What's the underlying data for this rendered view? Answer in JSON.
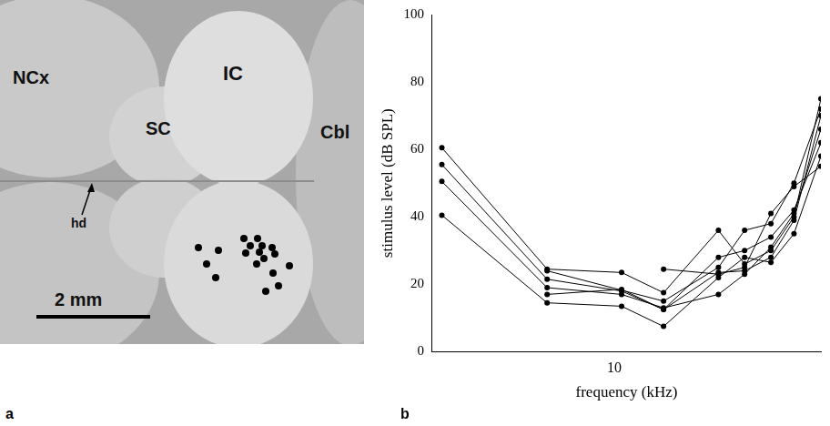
{
  "panel_a": {
    "letter": "a",
    "labels": {
      "ncx": "NCx",
      "sc": "SC",
      "ic": "IC",
      "cbl": "Cbl",
      "hd": "hd"
    },
    "scale_bar": "2 mm"
  },
  "panel_b": {
    "letter": "b"
  },
  "chart_data": {
    "type": "scatter",
    "log": "x",
    "grid": false,
    "x_label": "frequency (kHz)",
    "y_label": "stimulus level (dB SPL)",
    "xlim": [
      3.8,
      30
    ],
    "xticks": [
      10
    ],
    "ylim": [
      0,
      100
    ],
    "yticks": [
      0,
      20,
      40,
      60,
      80,
      100
    ],
    "marker": "circle",
    "line_style": "solid",
    "color": "#000000",
    "series": [
      {
        "x": [
          4,
          7,
          10.4,
          13,
          17.4,
          20,
          23,
          26,
          30
        ],
        "values": [
          60.5,
          24.5,
          23.5,
          17.5,
          36,
          26,
          30,
          40,
          75
        ]
      },
      {
        "x": [
          4,
          7,
          10.4,
          13,
          17.4,
          20,
          23,
          26,
          30
        ],
        "values": [
          55.5,
          21.5,
          18,
          12.5,
          23.5,
          24,
          28,
          39,
          70
        ]
      },
      {
        "x": [
          4,
          7,
          10.4,
          13,
          17.4,
          20,
          23,
          26,
          30
        ],
        "values": [
          50.5,
          19,
          17,
          13,
          17,
          23,
          31,
          41,
          66
        ]
      },
      {
        "x": [
          4,
          7,
          10.4,
          13,
          17.4,
          20,
          23,
          26,
          30
        ],
        "values": [
          40.5,
          14.5,
          13.5,
          7.5,
          22,
          28,
          26.5,
          35,
          58
        ]
      },
      {
        "x": [
          7,
          10.4,
          13,
          17.4,
          20,
          23,
          26,
          30
        ],
        "values": [
          17,
          18.5,
          12.5,
          28,
          30,
          34,
          42,
          62
        ]
      },
      {
        "x": [
          13,
          17.4,
          20,
          23,
          26,
          30
        ],
        "values": [
          24.5,
          23,
          25,
          41,
          49,
          55
        ]
      },
      {
        "x": [
          7,
          13,
          17.4,
          20,
          23,
          26,
          30
        ],
        "values": [
          24,
          15,
          25,
          36,
          38,
          50,
          72
        ]
      }
    ]
  }
}
